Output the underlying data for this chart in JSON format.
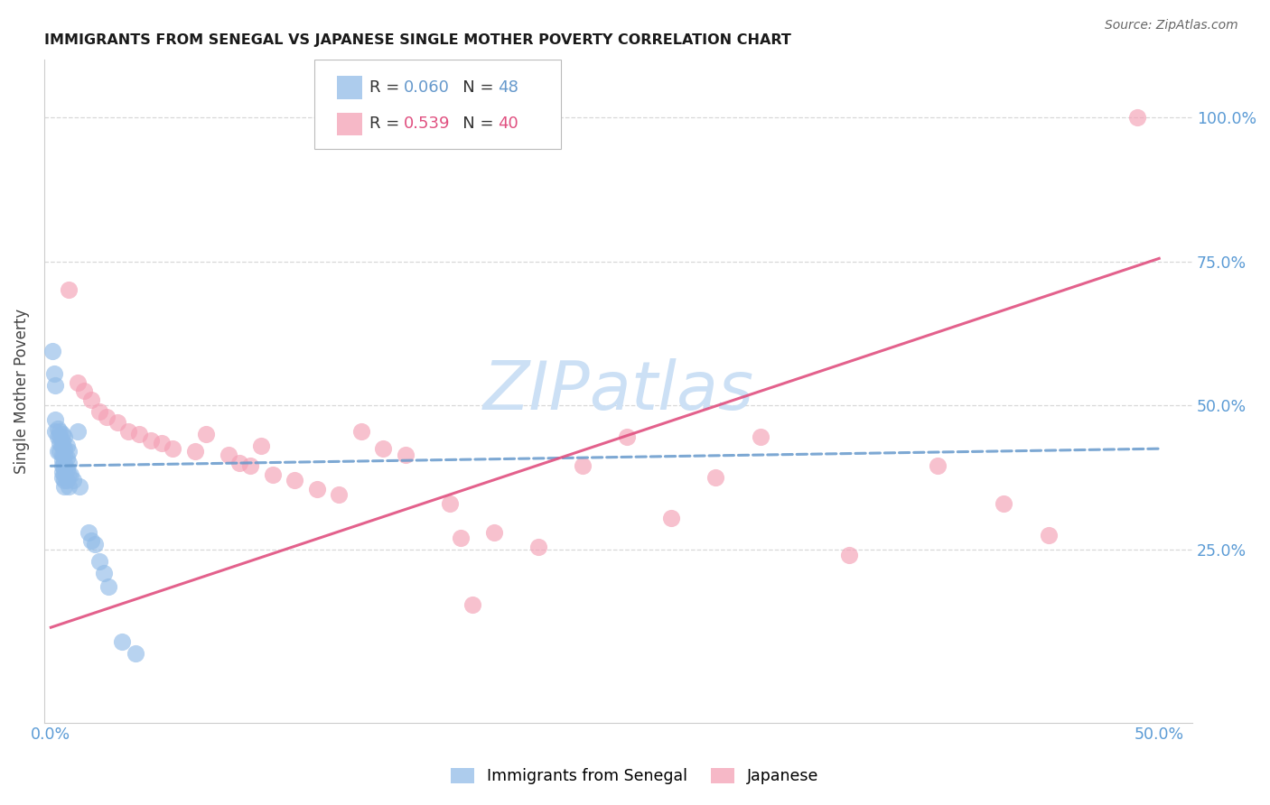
{
  "title": "IMMIGRANTS FROM SENEGAL VS JAPANESE SINGLE MOTHER POVERTY CORRELATION CHART",
  "source": "Source: ZipAtlas.com",
  "ylabel": "Single Mother Poverty",
  "ytick_labels": [
    "25.0%",
    "50.0%",
    "75.0%",
    "100.0%"
  ],
  "ytick_values": [
    0.25,
    0.5,
    0.75,
    1.0
  ],
  "xlim": [
    -0.003,
    0.515
  ],
  "ylim": [
    -0.05,
    1.1
  ],
  "blue_color": "#92bce8",
  "pink_color": "#f4a0b5",
  "blue_line_color": "#6699cc",
  "pink_line_color": "#e05080",
  "legend_blue_r": "0.060",
  "legend_blue_n": "48",
  "legend_pink_r": "0.539",
  "legend_pink_n": "40",
  "axis_tick_color": "#5b9bd5",
  "grid_color": "#d8d8d8",
  "watermark_color": "#cce0f5",
  "blue_points": [
    [
      0.0008,
      0.595
    ],
    [
      0.0015,
      0.555
    ],
    [
      0.0018,
      0.535
    ],
    [
      0.002,
      0.475
    ],
    [
      0.002,
      0.455
    ],
    [
      0.003,
      0.46
    ],
    [
      0.003,
      0.445
    ],
    [
      0.003,
      0.42
    ],
    [
      0.004,
      0.455
    ],
    [
      0.004,
      0.445
    ],
    [
      0.004,
      0.435
    ],
    [
      0.004,
      0.42
    ],
    [
      0.005,
      0.45
    ],
    [
      0.005,
      0.44
    ],
    [
      0.005,
      0.43
    ],
    [
      0.005,
      0.415
    ],
    [
      0.005,
      0.405
    ],
    [
      0.005,
      0.395
    ],
    [
      0.005,
      0.385
    ],
    [
      0.005,
      0.375
    ],
    [
      0.006,
      0.445
    ],
    [
      0.006,
      0.425
    ],
    [
      0.006,
      0.415
    ],
    [
      0.006,
      0.4
    ],
    [
      0.006,
      0.39
    ],
    [
      0.006,
      0.38
    ],
    [
      0.006,
      0.37
    ],
    [
      0.006,
      0.36
    ],
    [
      0.007,
      0.43
    ],
    [
      0.007,
      0.41
    ],
    [
      0.007,
      0.39
    ],
    [
      0.007,
      0.37
    ],
    [
      0.008,
      0.42
    ],
    [
      0.008,
      0.4
    ],
    [
      0.008,
      0.38
    ],
    [
      0.008,
      0.36
    ],
    [
      0.009,
      0.38
    ],
    [
      0.01,
      0.37
    ],
    [
      0.012,
      0.455
    ],
    [
      0.013,
      0.36
    ],
    [
      0.017,
      0.28
    ],
    [
      0.018,
      0.265
    ],
    [
      0.02,
      0.26
    ],
    [
      0.022,
      0.23
    ],
    [
      0.024,
      0.21
    ],
    [
      0.026,
      0.185
    ],
    [
      0.032,
      0.09
    ],
    [
      0.038,
      0.07
    ]
  ],
  "pink_points": [
    [
      0.008,
      0.7
    ],
    [
      0.012,
      0.54
    ],
    [
      0.015,
      0.525
    ],
    [
      0.018,
      0.51
    ],
    [
      0.022,
      0.49
    ],
    [
      0.025,
      0.48
    ],
    [
      0.03,
      0.47
    ],
    [
      0.035,
      0.455
    ],
    [
      0.04,
      0.45
    ],
    [
      0.045,
      0.44
    ],
    [
      0.05,
      0.435
    ],
    [
      0.055,
      0.425
    ],
    [
      0.065,
      0.42
    ],
    [
      0.07,
      0.45
    ],
    [
      0.08,
      0.415
    ],
    [
      0.085,
      0.4
    ],
    [
      0.09,
      0.395
    ],
    [
      0.095,
      0.43
    ],
    [
      0.1,
      0.38
    ],
    [
      0.11,
      0.37
    ],
    [
      0.12,
      0.355
    ],
    [
      0.13,
      0.345
    ],
    [
      0.14,
      0.455
    ],
    [
      0.15,
      0.425
    ],
    [
      0.16,
      0.415
    ],
    [
      0.18,
      0.33
    ],
    [
      0.185,
      0.27
    ],
    [
      0.19,
      0.155
    ],
    [
      0.2,
      0.28
    ],
    [
      0.22,
      0.255
    ],
    [
      0.24,
      0.395
    ],
    [
      0.26,
      0.445
    ],
    [
      0.28,
      0.305
    ],
    [
      0.3,
      0.375
    ],
    [
      0.32,
      0.445
    ],
    [
      0.36,
      0.24
    ],
    [
      0.4,
      0.395
    ],
    [
      0.43,
      0.33
    ],
    [
      0.45,
      0.275
    ],
    [
      0.49,
      1.0
    ]
  ],
  "blue_line": {
    "x0": 0.0,
    "y0": 0.395,
    "x1": 0.5,
    "y1": 0.425
  },
  "pink_line": {
    "x0": 0.0,
    "y0": 0.115,
    "x1": 0.5,
    "y1": 0.755
  }
}
